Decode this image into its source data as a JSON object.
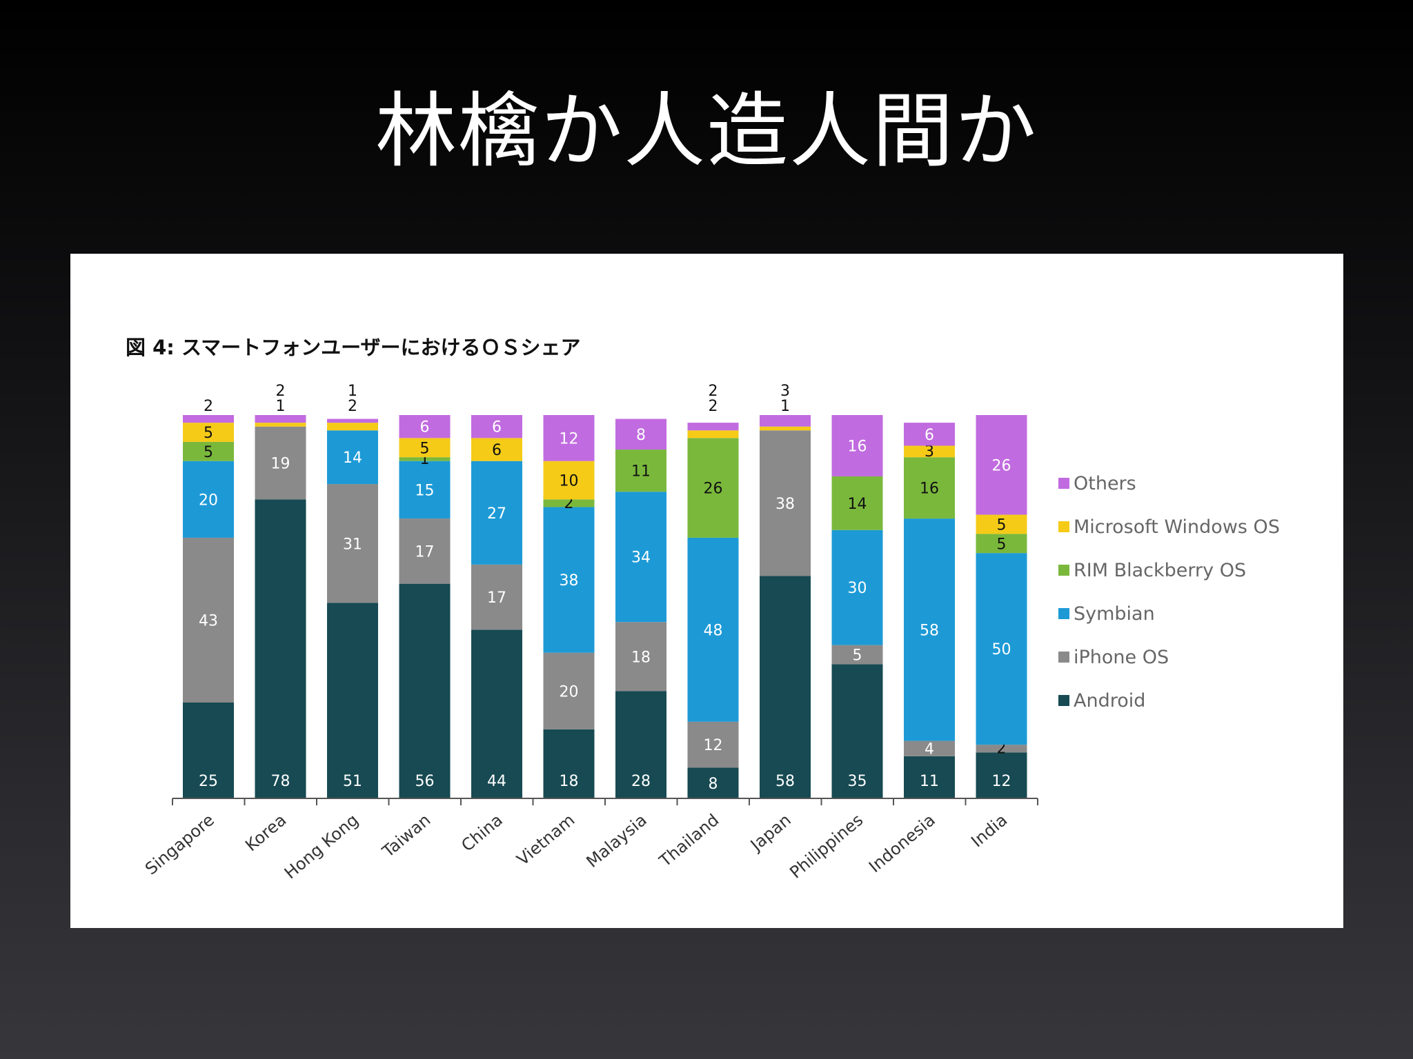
{
  "slide": {
    "title": "林檎か人造人間か"
  },
  "colors": {
    "Others": "#c16be0",
    "Microsoft Windows OS": "#f5cb18",
    "RIM Blackberry OS": "#7ab83c",
    "Symbian": "#1d9ad6",
    "iPhone OS": "#8a8a8a",
    "Android": "#174a52"
  },
  "chart_data": {
    "type": "bar",
    "stacked": true,
    "title": "図 4: スマートフォンユーザーにおけるＯＳシェア",
    "xlabel": "",
    "ylabel": "",
    "ylim": [
      0,
      100
    ],
    "grid": false,
    "legend_position": "right",
    "categories": [
      "Singapore",
      "Korea",
      "Hong Kong",
      "Taiwan",
      "China",
      "Vietnam",
      "Malaysia",
      "Thailand",
      "Japan",
      "Philippines",
      "Indonesia",
      "India"
    ],
    "series": [
      {
        "name": "Android",
        "values": [
          25,
          78,
          51,
          56,
          44,
          18,
          28,
          8,
          58,
          35,
          11,
          12
        ]
      },
      {
        "name": "iPhone OS",
        "values": [
          43,
          19,
          31,
          17,
          17,
          20,
          18,
          12,
          38,
          5,
          4,
          2
        ]
      },
      {
        "name": "Symbian",
        "values": [
          20,
          0,
          14,
          15,
          27,
          38,
          34,
          48,
          0,
          30,
          58,
          50
        ]
      },
      {
        "name": "RIM Blackberry OS",
        "values": [
          5,
          0,
          0,
          1,
          0,
          2,
          11,
          26,
          0,
          14,
          16,
          5
        ]
      },
      {
        "name": "Microsoft Windows OS",
        "values": [
          5,
          1,
          2,
          5,
          6,
          10,
          0,
          2,
          1,
          0,
          3,
          5
        ]
      },
      {
        "name": "Others",
        "values": [
          2,
          2,
          1,
          6,
          6,
          12,
          8,
          2,
          3,
          16,
          6,
          26
        ]
      }
    ],
    "legend_order": [
      "Others",
      "Microsoft Windows OS",
      "RIM Blackberry OS",
      "Symbian",
      "iPhone OS",
      "Android"
    ]
  }
}
